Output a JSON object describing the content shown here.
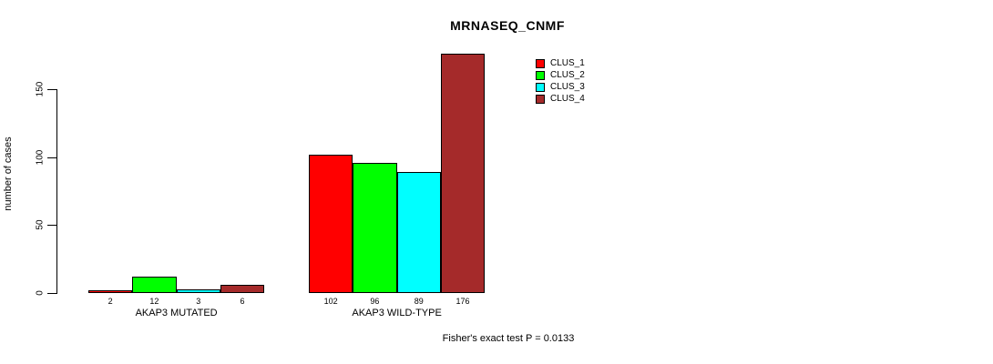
{
  "chart_data": {
    "type": "bar",
    "title": "MRNASEQ_CNMF",
    "xlabel": "",
    "ylabel": "number of cases",
    "categories": [
      "AKAP3 MUTATED",
      "AKAP3 WILD-TYPE"
    ],
    "series": [
      {
        "name": "CLUS_1",
        "color": "#FF0000",
        "values": [
          2,
          102
        ]
      },
      {
        "name": "CLUS_2",
        "color": "#00FF00",
        "values": [
          12,
          96
        ]
      },
      {
        "name": "CLUS_3",
        "color": "#00FFFF",
        "values": [
          3,
          89
        ]
      },
      {
        "name": "CLUS_4",
        "color": "#A52A2A",
        "values": [
          6,
          176
        ]
      }
    ],
    "yticks": [
      0,
      50,
      100,
      150
    ],
    "ylim": [
      0,
      176
    ],
    "grid": false,
    "legend_position": "top-right",
    "bar_value_labels_shown": true,
    "annotation": "Fisher's exact test P = 0.0133"
  }
}
